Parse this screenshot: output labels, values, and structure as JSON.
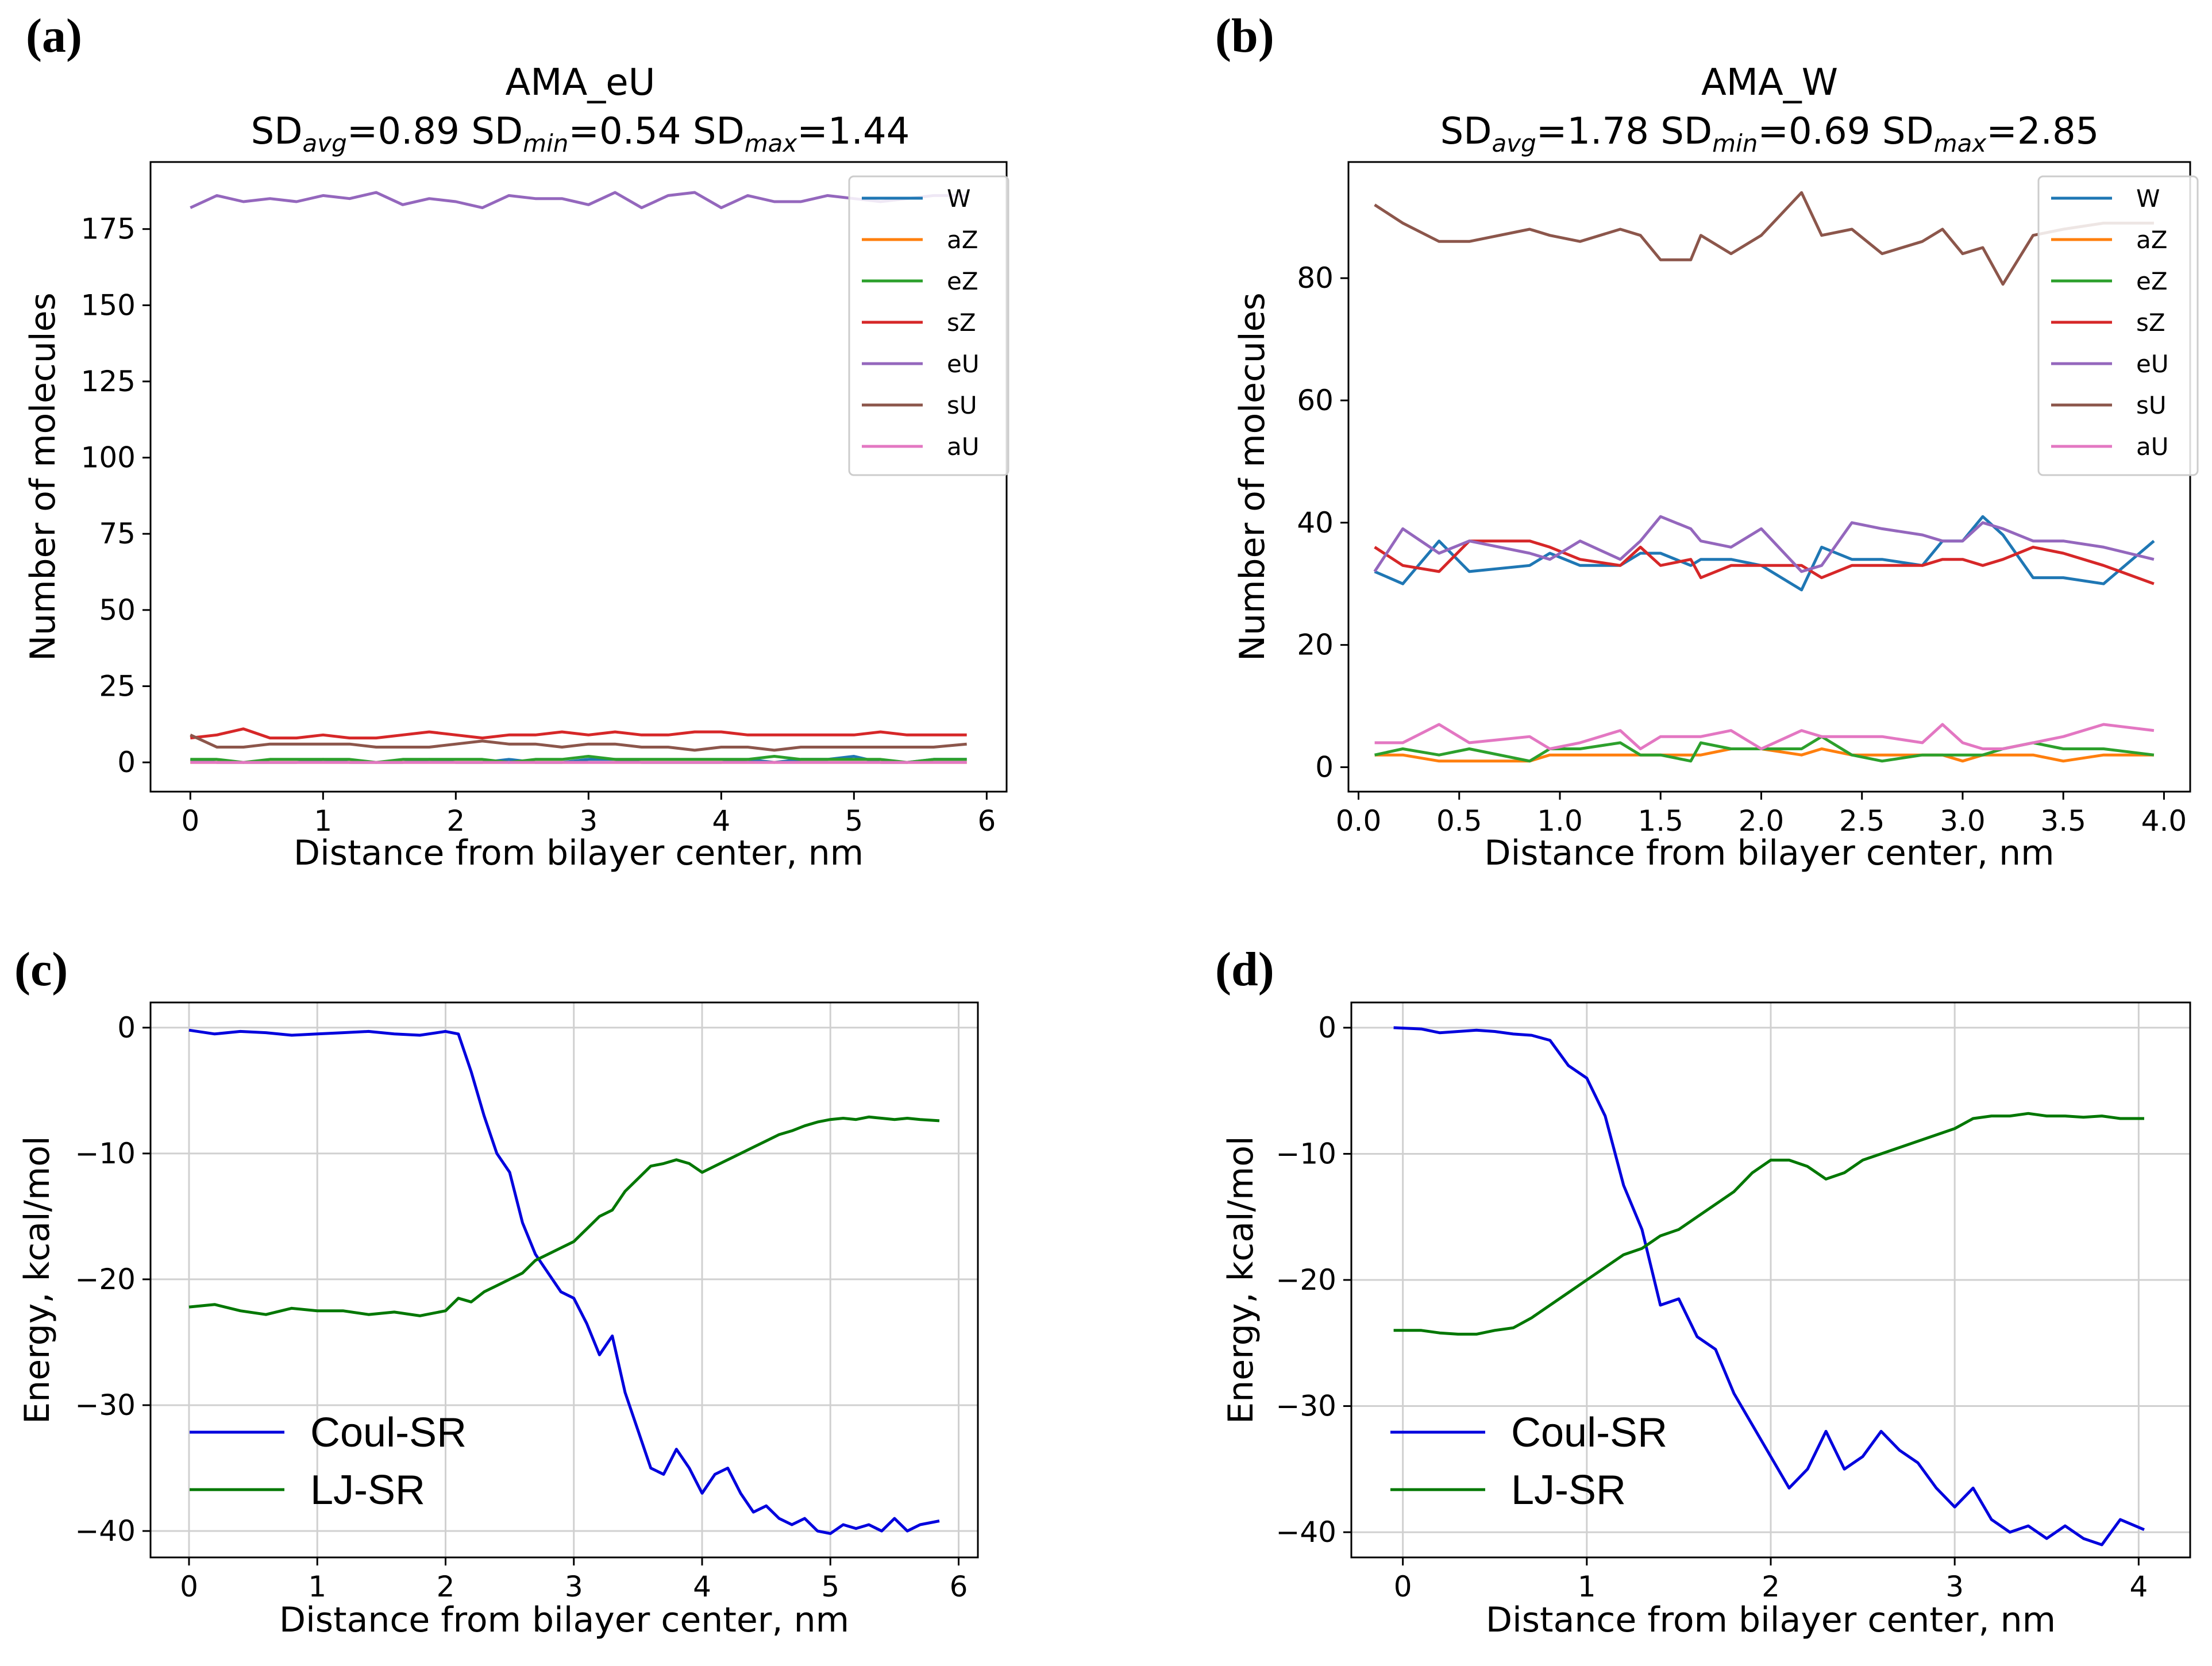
{
  "figure": {
    "panel_labels": [
      "(a)",
      "(b)",
      "(c)",
      "(d)"
    ]
  },
  "chart_data": [
    {
      "panel": "(a)",
      "type": "line",
      "title": "AMA_eU",
      "subtitle": "SD_avg=0.89 SD_min=0.54 SD_max=1.44",
      "sd": {
        "avg": "0.89",
        "min": "0.54",
        "max": "1.44"
      },
      "xlabel": "Distance from bilayer center, nm",
      "ylabel": "Number of molecules",
      "xlim": [
        -0.3,
        6.15
      ],
      "ylim": [
        -9.6,
        197
      ],
      "xticks": [
        0,
        1,
        2,
        3,
        4,
        5,
        6
      ],
      "yticks": [
        0,
        25,
        50,
        75,
        100,
        125,
        150,
        175
      ],
      "grid": false,
      "legend": "top-right",
      "x": [
        0.0,
        0.2,
        0.4,
        0.6,
        0.8,
        1.0,
        1.2,
        1.4,
        1.6,
        1.8,
        2.0,
        2.2,
        2.4,
        2.6,
        2.8,
        3.0,
        3.2,
        3.4,
        3.6,
        3.8,
        4.0,
        4.2,
        4.4,
        4.6,
        4.8,
        5.0,
        5.2,
        5.4,
        5.6,
        5.85
      ],
      "series": [
        {
          "name": "W",
          "color": "#1f77b4",
          "values": [
            1,
            0,
            0,
            0,
            0,
            1,
            0,
            0,
            0,
            1,
            0,
            0,
            1,
            0,
            0,
            1,
            1,
            0,
            0,
            0,
            0,
            1,
            0,
            1,
            1,
            2,
            0,
            0,
            1,
            1
          ]
        },
        {
          "name": "aZ",
          "color": "#ff7f0e",
          "values": [
            0,
            0,
            0,
            0,
            0,
            0,
            0,
            0,
            0,
            0,
            0,
            0,
            0,
            0,
            0,
            0,
            0,
            0,
            0,
            0,
            0,
            0,
            0,
            0,
            0,
            0,
            0,
            0,
            0,
            0
          ]
        },
        {
          "name": "eZ",
          "color": "#2ca02c",
          "values": [
            1,
            1,
            0,
            1,
            1,
            1,
            1,
            0,
            1,
            1,
            1,
            1,
            0,
            1,
            1,
            2,
            1,
            1,
            1,
            1,
            1,
            1,
            2,
            1,
            1,
            1,
            1,
            0,
            1,
            1
          ]
        },
        {
          "name": "sZ",
          "color": "#d62728",
          "values": [
            8,
            9,
            11,
            8,
            8,
            9,
            8,
            8,
            9,
            10,
            9,
            8,
            9,
            9,
            10,
            9,
            10,
            9,
            9,
            10,
            10,
            9,
            9,
            9,
            9,
            9,
            10,
            9,
            9,
            9
          ]
        },
        {
          "name": "eU",
          "color": "#9467bd",
          "values": [
            182,
            186,
            184,
            185,
            184,
            186,
            185,
            187,
            183,
            185,
            184,
            182,
            186,
            185,
            185,
            183,
            187,
            182,
            186,
            187,
            182,
            186,
            184,
            184,
            186,
            185,
            184,
            185,
            186,
            186
          ]
        },
        {
          "name": "sU",
          "color": "#8c564b",
          "values": [
            9,
            5,
            5,
            6,
            6,
            6,
            6,
            5,
            5,
            5,
            6,
            7,
            6,
            6,
            5,
            6,
            6,
            5,
            5,
            4,
            5,
            5,
            4,
            5,
            5,
            5,
            5,
            5,
            5,
            6
          ]
        },
        {
          "name": "aU",
          "color": "#e377c2",
          "values": [
            0,
            0,
            0,
            0,
            0,
            0,
            0,
            0,
            0,
            0,
            0,
            0,
            0,
            0,
            0,
            0,
            0,
            0,
            0,
            0,
            0,
            0,
            0,
            0,
            0,
            0,
            0,
            0,
            0,
            0
          ]
        }
      ]
    },
    {
      "panel": "(b)",
      "type": "line",
      "title": "AMA_W",
      "subtitle": "SD_avg=1.78 SD_min=0.69 SD_max=2.85",
      "sd": {
        "avg": "1.78",
        "min": "0.69",
        "max": "2.85"
      },
      "xlabel": "Distance from bilayer center, nm",
      "ylabel": "Number of molecules",
      "xlim": [
        -0.05,
        4.13
      ],
      "ylim": [
        -4.0,
        99
      ],
      "xticks": [
        0.0,
        0.5,
        1.0,
        1.5,
        2.0,
        2.5,
        3.0,
        3.5,
        4.0
      ],
      "yticks": [
        0,
        20,
        40,
        60,
        80
      ],
      "grid": false,
      "legend": "top-right",
      "x": [
        0.08,
        0.22,
        0.4,
        0.55,
        0.85,
        0.95,
        1.1,
        1.3,
        1.4,
        1.5,
        1.65,
        1.7,
        1.85,
        2.0,
        2.2,
        2.3,
        2.45,
        2.6,
        2.8,
        2.9,
        3.0,
        3.1,
        3.2,
        3.35,
        3.5,
        3.7,
        3.95
      ],
      "series": [
        {
          "name": "W",
          "color": "#1f77b4",
          "values": [
            32,
            30,
            37,
            32,
            33,
            35,
            33,
            33,
            35,
            35,
            33,
            34,
            34,
            33,
            29,
            36,
            34,
            34,
            33,
            37,
            37,
            41,
            38,
            31,
            31,
            30,
            37
          ]
        },
        {
          "name": "aZ",
          "color": "#ff7f0e",
          "values": [
            2,
            2,
            1,
            1,
            1,
            2,
            2,
            2,
            2,
            2,
            2,
            2,
            3,
            3,
            2,
            3,
            2,
            2,
            2,
            2,
            1,
            2,
            2,
            2,
            1,
            2,
            2
          ]
        },
        {
          "name": "eZ",
          "color": "#2ca02c",
          "values": [
            2,
            3,
            2,
            3,
            1,
            3,
            3,
            4,
            2,
            2,
            1,
            4,
            3,
            3,
            3,
            5,
            2,
            1,
            2,
            2,
            2,
            2,
            3,
            4,
            3,
            3,
            2
          ]
        },
        {
          "name": "sZ",
          "color": "#d62728",
          "values": [
            36,
            33,
            32,
            37,
            37,
            36,
            34,
            33,
            36,
            33,
            34,
            31,
            33,
            33,
            33,
            31,
            33,
            33,
            33,
            34,
            34,
            33,
            34,
            36,
            35,
            33,
            30
          ]
        },
        {
          "name": "eU",
          "color": "#9467bd",
          "values": [
            32,
            39,
            35,
            37,
            35,
            34,
            37,
            34,
            37,
            41,
            39,
            37,
            36,
            39,
            32,
            33,
            40,
            39,
            38,
            37,
            37,
            40,
            39,
            37,
            37,
            36,
            34
          ]
        },
        {
          "name": "sU",
          "color": "#8c564b",
          "values": [
            92,
            89,
            86,
            86,
            88,
            87,
            86,
            88,
            87,
            83,
            83,
            87,
            84,
            87,
            94,
            87,
            88,
            84,
            86,
            88,
            84,
            85,
            79,
            87,
            88,
            89,
            89
          ]
        },
        {
          "name": "aU",
          "color": "#e377c2",
          "values": [
            4,
            4,
            7,
            4,
            5,
            3,
            4,
            6,
            3,
            5,
            5,
            5,
            6,
            3,
            6,
            5,
            5,
            5,
            4,
            7,
            4,
            3,
            3,
            4,
            5,
            7,
            6
          ]
        }
      ]
    },
    {
      "panel": "(c)",
      "type": "line",
      "title": "",
      "xlabel": "Distance from bilayer center, nm",
      "ylabel": "Energy, kcal/mol",
      "xlim": [
        -0.3,
        6.15
      ],
      "ylim": [
        -42.1,
        2.0
      ],
      "xticks": [
        0,
        1,
        2,
        3,
        4,
        5,
        6
      ],
      "yticks": [
        0,
        -10,
        -20,
        -30,
        -40
      ],
      "grid": true,
      "legend": "lower-left",
      "x": [
        0.0,
        0.2,
        0.4,
        0.6,
        0.8,
        1.0,
        1.2,
        1.4,
        1.6,
        1.8,
        2.0,
        2.1,
        2.2,
        2.3,
        2.4,
        2.5,
        2.6,
        2.7,
        2.8,
        2.9,
        3.0,
        3.1,
        3.2,
        3.3,
        3.4,
        3.5,
        3.6,
        3.7,
        3.8,
        3.9,
        4.0,
        4.1,
        4.2,
        4.3,
        4.4,
        4.5,
        4.6,
        4.7,
        4.8,
        4.9,
        5.0,
        5.1,
        5.2,
        5.3,
        5.4,
        5.5,
        5.6,
        5.7,
        5.85
      ],
      "series": [
        {
          "name": "Coul-SR",
          "color": "#0000dd",
          "values": [
            -0.2,
            -0.5,
            -0.3,
            -0.4,
            -0.6,
            -0.5,
            -0.4,
            -0.3,
            -0.5,
            -0.6,
            -0.3,
            -0.5,
            -3.5,
            -7.0,
            -10.0,
            -11.5,
            -15.5,
            -18.0,
            -19.5,
            -21.0,
            -21.5,
            -23.5,
            -26.0,
            -24.5,
            -29.0,
            -32.0,
            -35.0,
            -35.5,
            -33.5,
            -35.0,
            -37.0,
            -35.5,
            -35.0,
            -37.0,
            -38.5,
            -38.0,
            -39.0,
            -39.5,
            -39.0,
            -40.0,
            -40.2,
            -39.5,
            -39.8,
            -39.5,
            -40.0,
            -39.0,
            -40.0,
            -39.5,
            -39.2
          ]
        },
        {
          "name": "LJ-SR",
          "color": "#007700",
          "values": [
            -22.2,
            -22.0,
            -22.5,
            -22.8,
            -22.3,
            -22.5,
            -22.5,
            -22.8,
            -22.6,
            -22.9,
            -22.5,
            -21.5,
            -21.8,
            -21.0,
            -20.5,
            -20.0,
            -19.5,
            -18.5,
            -18.0,
            -17.5,
            -17.0,
            -16.0,
            -15.0,
            -14.5,
            -13.0,
            -12.0,
            -11.0,
            -10.8,
            -10.5,
            -10.8,
            -11.5,
            -11.0,
            -10.5,
            -10.0,
            -9.5,
            -9.0,
            -8.5,
            -8.2,
            -7.8,
            -7.5,
            -7.3,
            -7.2,
            -7.3,
            -7.1,
            -7.2,
            -7.3,
            -7.2,
            -7.3,
            -7.4
          ]
        }
      ]
    },
    {
      "panel": "(d)",
      "type": "line",
      "title": "",
      "xlabel": "Distance from bilayer center, nm",
      "ylabel": "Energy, kcal/mol",
      "xlim": [
        -0.28,
        4.28
      ],
      "ylim": [
        -42.0,
        2.0
      ],
      "xticks": [
        0,
        1,
        2,
        3,
        4
      ],
      "yticks": [
        0,
        -10,
        -20,
        -30,
        -40
      ],
      "grid": true,
      "legend": "lower-left",
      "x": [
        -0.05,
        0.1,
        0.2,
        0.3,
        0.4,
        0.5,
        0.6,
        0.7,
        0.8,
        0.9,
        1.0,
        1.1,
        1.2,
        1.3,
        1.4,
        1.5,
        1.6,
        1.7,
        1.8,
        1.9,
        2.0,
        2.1,
        2.2,
        2.3,
        2.4,
        2.5,
        2.6,
        2.7,
        2.8,
        2.9,
        3.0,
        3.1,
        3.2,
        3.3,
        3.4,
        3.5,
        3.6,
        3.7,
        3.8,
        3.9,
        4.03
      ],
      "series": [
        {
          "name": "Coul-SR",
          "color": "#0000dd",
          "values": [
            0.0,
            -0.1,
            -0.4,
            -0.3,
            -0.2,
            -0.3,
            -0.5,
            -0.6,
            -1.0,
            -3.0,
            -4.0,
            -7.0,
            -12.5,
            -16.0,
            -22.0,
            -21.5,
            -24.5,
            -25.5,
            -29.0,
            -31.5,
            -34.0,
            -36.5,
            -35.0,
            -32.0,
            -35.0,
            -34.0,
            -32.0,
            -33.5,
            -34.5,
            -36.5,
            -38.0,
            -36.5,
            -39.0,
            -40.0,
            -39.5,
            -40.5,
            -39.5,
            -40.5,
            -41.0,
            -39.0,
            -39.8
          ]
        },
        {
          "name": "LJ-SR",
          "color": "#007700",
          "values": [
            -24.0,
            -24.0,
            -24.2,
            -24.3,
            -24.3,
            -24.0,
            -23.8,
            -23.0,
            -22.0,
            -21.0,
            -20.0,
            -19.0,
            -18.0,
            -17.5,
            -16.5,
            -16.0,
            -15.0,
            -14.0,
            -13.0,
            -11.5,
            -10.5,
            -10.5,
            -11.0,
            -12.0,
            -11.5,
            -10.5,
            -10.0,
            -9.5,
            -9.0,
            -8.5,
            -8.0,
            -7.2,
            -7.0,
            -7.0,
            -6.8,
            -7.0,
            -7.0,
            -7.1,
            -7.0,
            -7.2,
            -7.2
          ]
        }
      ]
    }
  ]
}
